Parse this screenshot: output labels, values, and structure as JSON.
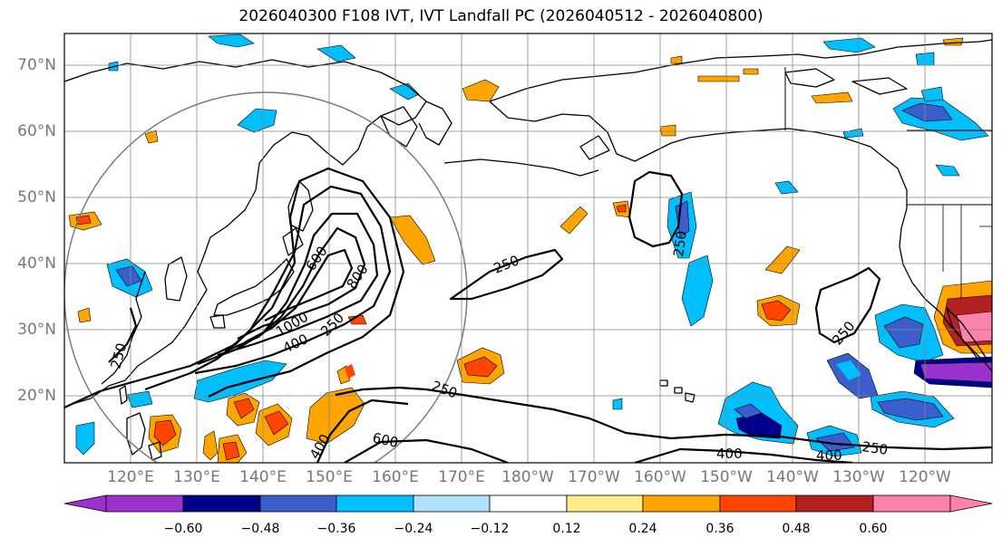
{
  "title": "2026040300 F108 IVT, IVT Landfall PC (2026040512 - 2026040800)",
  "lat_labels": [
    "70°N",
    "60°N",
    "50°N",
    "40°N",
    "30°N",
    "20°N"
  ],
  "lon_labels": [
    "120°E",
    "130°E",
    "140°E",
    "150°E",
    "160°E",
    "170°E",
    "180°W",
    "170°W",
    "160°W",
    "150°W",
    "140°W",
    "130°W",
    "120°W"
  ],
  "contour_labels": [
    "250",
    "250",
    "250",
    "250",
    "250",
    "250",
    "250",
    "400",
    "400",
    "400",
    "400",
    "600",
    "600",
    "800",
    "1000"
  ],
  "colorbar": {
    "colors": [
      "#9a32cd",
      "#00008b",
      "#3a5fcd",
      "#00bfff",
      "#b0e2ff",
      "#ffffff",
      "#ffec8b",
      "#ffa500",
      "#ff4500",
      "#b22222",
      "#ff82ab"
    ],
    "tick_labels": [
      "−0.60",
      "−0.48",
      "−0.36",
      "−0.24",
      "−0.12",
      "0.12",
      "0.24",
      "0.36",
      "0.48",
      "0.60"
    ]
  },
  "map_data": {
    "projection": "cylindrical",
    "extent": {
      "lon_min": 110,
      "lon_max": 250,
      "lat_min": 10,
      "lat_max": 75
    },
    "contour_levels": [
      250,
      400,
      600,
      800,
      1000
    ],
    "shading_levels": [
      -0.6,
      -0.48,
      -0.36,
      -0.24,
      -0.12,
      0.12,
      0.24,
      0.36,
      0.48,
      0.6
    ]
  }
}
